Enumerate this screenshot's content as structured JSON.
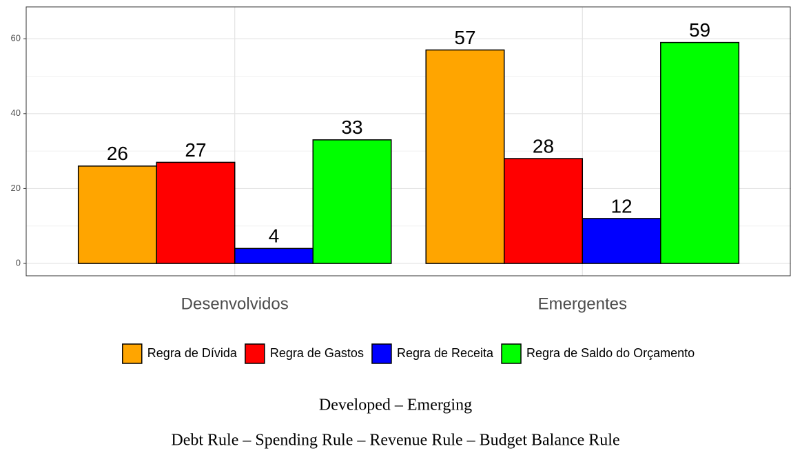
{
  "chart_data": {
    "type": "bar",
    "categories": [
      "Desenvolvidos",
      "Emergentes"
    ],
    "series": [
      {
        "name": "Regra de Dívida",
        "color": "#ffa500",
        "values": [
          26,
          57
        ]
      },
      {
        "name": "Regra de Gastos",
        "color": "#ff0000",
        "values": [
          27,
          28
        ]
      },
      {
        "name": "Regra de Receita",
        "color": "#0000ff",
        "values": [
          4,
          12
        ]
      },
      {
        "name": "Regra de Saldo do Orçamento",
        "color": "#00ff00",
        "values": [
          33,
          59
        ]
      }
    ],
    "ylim": [
      -3.3,
      68.5
    ],
    "yticks": [
      0,
      20,
      40,
      60
    ],
    "yminor": [
      10,
      30,
      50
    ],
    "grid": true,
    "legend": "bottom"
  },
  "caption": [
    "Developed – Emerging",
    "Debt Rule – Spending Rule – Revenue Rule – Budget Balance Rule"
  ]
}
